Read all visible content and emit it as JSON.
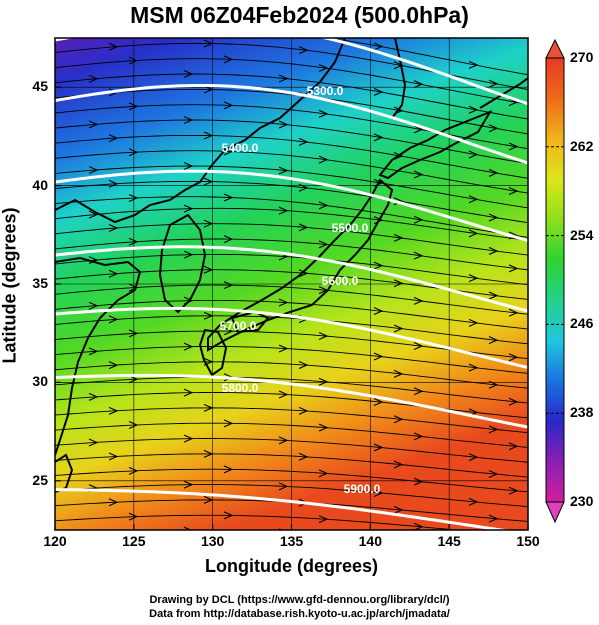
{
  "title": "MSM 06Z04Feb2024 (500.0hPa)",
  "xlabel": "Longitude (degrees)",
  "ylabel": "Latitude  (degrees)",
  "footer": {
    "line1": "Drawing by DCL (https://www.gfd-dennou.org/library/dcl/)",
    "line2": "Data from http://database.rish.kyoto-u.ac.jp/arch/jmadata/"
  },
  "map": {
    "lon_range": [
      120,
      150
    ],
    "lat_range": [
      22.5,
      47.5
    ],
    "xticks": [
      "120",
      "125",
      "130",
      "135",
      "140",
      "145",
      "150"
    ],
    "yticks": [
      "25",
      "30",
      "35",
      "40",
      "45"
    ],
    "shaded_field": "temperature (K)",
    "contour_field": "geopotential height",
    "contour_labels": [
      "5300.0",
      "5400.0",
      "5500.0",
      "5600.0",
      "5700.0",
      "5800.0",
      "5900.0"
    ],
    "streamlines": "westerly flow, arrows pointing east"
  },
  "colorbar": {
    "ticks": [
      "270",
      "262",
      "254",
      "246",
      "238",
      "230"
    ],
    "min": 230,
    "max": 270,
    "colors": [
      "#d0209a",
      "#8a1fb3",
      "#2828c8",
      "#1a72e0",
      "#1ec8dc",
      "#22d28a",
      "#2ed232",
      "#8ee01a",
      "#dce61a",
      "#f0b41a",
      "#ee6a1a",
      "#e83a24"
    ]
  }
}
